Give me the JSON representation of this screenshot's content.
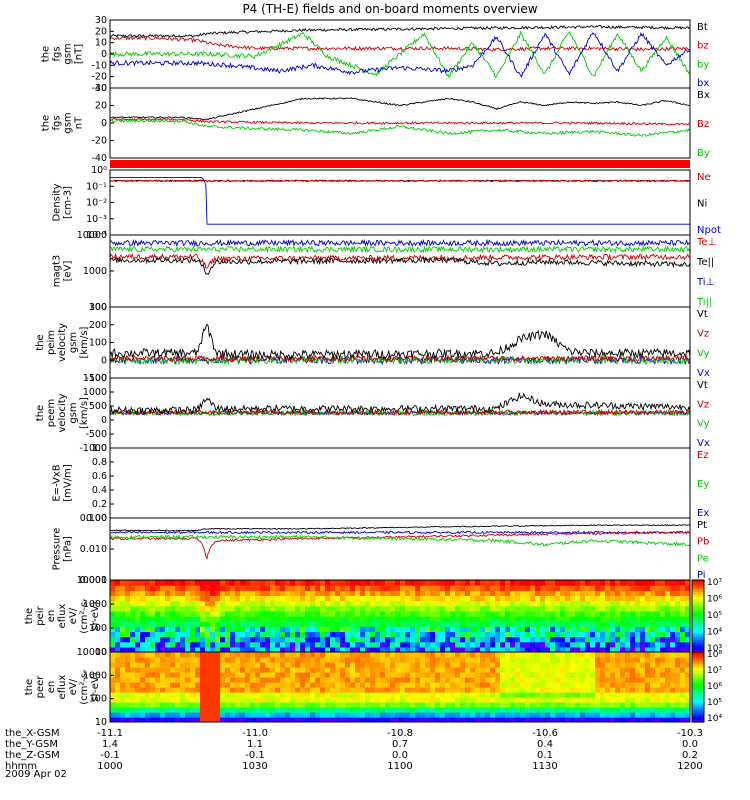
{
  "chart_data": {
    "title": "P4 (TH-E) fields and on-board moments overview",
    "date": "2009 Apr 02",
    "x_ticks": [
      "1000",
      "1030",
      "1100",
      "1130",
      "1200"
    ],
    "xlim_minutes": [
      0,
      120
    ],
    "ephemeris": [
      {
        "label": "the_X-GSM",
        "values": [
          "-11.1",
          "-11.0",
          "-10.8",
          "-10.6",
          "-10.3"
        ]
      },
      {
        "label": "the_Y-GSM",
        "values": [
          "1.4",
          "1.1",
          "0.7",
          "0.4",
          "0.0"
        ]
      },
      {
        "label": "the_Z-GSM",
        "values": [
          "-0.1",
          "-0.1",
          "0.0",
          "0.1",
          "0.2"
        ]
      },
      {
        "label": "hhmm",
        "values": [
          "1000",
          "1030",
          "1100",
          "1130",
          "1200"
        ]
      }
    ],
    "panels": [
      {
        "type": "line",
        "ylabel": [
          "the",
          "fgs",
          "gsm",
          "[nT]"
        ],
        "ylim": [
          -30,
          30
        ],
        "scale": "linear",
        "ticks": [
          "30",
          "20",
          "10",
          "0",
          "-10",
          "-20",
          "-30"
        ],
        "legend": [
          {
            "name": "Bt",
            "color": "#000000"
          },
          {
            "name": "bz",
            "color": "#cc0000"
          },
          {
            "name": "by",
            "color": "#00cc00"
          },
          {
            "name": "bx",
            "color": "#0000cc"
          }
        ],
        "series": [
          {
            "name": "Bt",
            "color": "#000000",
            "x": [
              0,
              10,
              18,
              20,
              25,
              40,
              60,
              80,
              100,
              120
            ],
            "y": [
              16,
              16,
              16,
              18,
              19,
              21,
              22,
              23,
              24,
              23
            ],
            "noise": 1.2
          },
          {
            "name": "bz",
            "color": "#cc0000",
            "x": [
              0,
              10,
              18,
              22,
              30,
              50,
              70,
              80,
              90,
              100,
              110,
              120
            ],
            "y": [
              14,
              14,
              12,
              8,
              5,
              5,
              5,
              4,
              5,
              5,
              4,
              5
            ],
            "noise": 1.5
          },
          {
            "name": "by",
            "color": "#00cc00",
            "x": [
              0,
              10,
              20,
              30,
              40,
              45,
              55,
              60,
              65,
              70,
              75,
              80,
              85,
              90,
              95,
              100,
              105,
              110,
              115,
              120
            ],
            "y": [
              0,
              0,
              0,
              -2,
              18,
              -2,
              -18,
              0,
              18,
              -20,
              10,
              -20,
              18,
              -18,
              20,
              -20,
              18,
              -15,
              15,
              -18
            ],
            "noise": 2
          },
          {
            "name": "bx",
            "color": "#0000cc",
            "x": [
              0,
              10,
              18,
              25,
              35,
              42,
              50,
              60,
              70,
              75,
              80,
              85,
              90,
              95,
              100,
              105,
              110,
              115,
              120
            ],
            "y": [
              -8,
              -8,
              -8,
              -10,
              -15,
              -10,
              -16,
              -12,
              -15,
              -10,
              15,
              -20,
              18,
              -18,
              20,
              -15,
              18,
              -10,
              5
            ],
            "noise": 2
          }
        ]
      },
      {
        "type": "line",
        "ylabel": [
          "the",
          "fgs",
          "gsm",
          "nT"
        ],
        "ylim": [
          -50,
          50
        ],
        "scale": "linear",
        "ticks": [
          "40",
          "20",
          "0",
          "-20",
          "-40"
        ],
        "legend": [
          {
            "name": "Bx",
            "color": "#000000"
          },
          {
            "name": "Bz",
            "color": "#cc0000"
          },
          {
            "name": "By",
            "color": "#00cc00"
          }
        ],
        "series": [
          {
            "name": "Bx",
            "color": "#000000",
            "x": [
              0,
              15,
              20,
              30,
              40,
              50,
              60,
              70,
              75,
              80,
              85,
              90,
              95,
              100,
              105,
              110,
              115,
              120
            ],
            "y": [
              8,
              8,
              5,
              20,
              35,
              35,
              25,
              35,
              30,
              20,
              30,
              25,
              30,
              28,
              30,
              25,
              32,
              25
            ],
            "noise": 1
          },
          {
            "name": "Bz",
            "color": "#cc0000",
            "x": [
              0,
              15,
              20,
              40,
              60,
              80,
              100,
              120
            ],
            "y": [
              5,
              5,
              2,
              0,
              0,
              0,
              0,
              -2
            ],
            "noise": 1.5
          },
          {
            "name": "By",
            "color": "#00cc00",
            "x": [
              0,
              15,
              20,
              30,
              40,
              50,
              60,
              70,
              80,
              90,
              100,
              110,
              120
            ],
            "y": [
              3,
              3,
              -5,
              -8,
              -10,
              -15,
              -5,
              -15,
              -10,
              -15,
              -12,
              -18,
              -10
            ],
            "noise": 2
          }
        ]
      },
      {
        "type": "line",
        "ylabel": [
          "Density",
          "[cm-3]"
        ],
        "ylim": [
          1e-05,
          10
        ],
        "scale": "log",
        "ticks": [
          "10⁰",
          "10⁻¹",
          "10⁻²",
          "10⁻³",
          "10⁻⁴"
        ],
        "legend": [
          {
            "name": "Ne",
            "color": "#cc0000"
          },
          {
            "name": "Ni",
            "color": "#000000"
          },
          {
            "name": "Npot",
            "color": "#0000cc"
          }
        ],
        "series": [
          {
            "name": "Npot",
            "color": "#0000cc",
            "x": [
              0,
              19,
              20,
              120
            ],
            "y": [
              2,
              2,
              0.0001,
              0.0001
            ],
            "noise": 0
          },
          {
            "name": "Ni",
            "color": "#000000",
            "x": [
              0,
              120
            ],
            "y": [
              1,
              1
            ],
            "noise": 0.1
          },
          {
            "name": "Ne",
            "color": "#cc0000",
            "x": [
              0,
              120
            ],
            "y": [
              1,
              1
            ],
            "noise": 0.15
          }
        ]
      },
      {
        "type": "line",
        "ylabel": [
          "magt3",
          "[eV]"
        ],
        "ylim": [
          100,
          10000
        ],
        "scale": "log",
        "ticks": [
          "10000",
          "1000",
          "100"
        ],
        "legend": [
          {
            "name": "Te⊥",
            "color": "#cc0000"
          },
          {
            "name": "Te||",
            "color": "#000000"
          },
          {
            "name": "Ti⊥",
            "color": "#0000cc"
          },
          {
            "name": "Ti||",
            "color": "#00cc00"
          }
        ],
        "series": [
          {
            "name": "Ti⊥",
            "color": "#0000cc",
            "x": [
              0,
              120
            ],
            "y": [
              6000,
              6000
            ],
            "noise": 0.15
          },
          {
            "name": "Ti||",
            "color": "#00cc00",
            "x": [
              0,
              120
            ],
            "y": [
              4000,
              4000
            ],
            "noise": 0.15
          },
          {
            "name": "Te⊥",
            "color": "#cc0000",
            "x": [
              0,
              18,
              20,
              22,
              120
            ],
            "y": [
              2500,
              2500,
              1200,
              2200,
              2500
            ],
            "noise": 0.15
          },
          {
            "name": "Te||",
            "color": "#000000",
            "x": [
              0,
              18,
              20,
              22,
              70,
              80,
              90,
              120
            ],
            "y": [
              2000,
              2000,
              800,
              1800,
              2000,
              1600,
              1800,
              1500
            ],
            "noise": 0.15
          }
        ]
      },
      {
        "type": "line",
        "ylabel": [
          "the",
          "peim",
          "velocity",
          "gsm",
          "[km/s]"
        ],
        "ylim": [
          -100,
          300
        ],
        "scale": "linear",
        "ticks": [
          "300",
          "200",
          "100",
          "0",
          "-100"
        ],
        "legend": [
          {
            "name": "Vt",
            "color": "#000000"
          },
          {
            "name": "Vz",
            "color": "#cc0000"
          },
          {
            "name": "Vy",
            "color": "#00cc00"
          },
          {
            "name": "Vx",
            "color": "#0000cc"
          }
        ],
        "series": [
          {
            "name": "Vx",
            "color": "#0000cc",
            "x": [
              0,
              120
            ],
            "y": [
              0,
              0
            ],
            "noise": 20
          },
          {
            "name": "Vy",
            "color": "#00cc00",
            "x": [
              0,
              120
            ],
            "y": [
              0,
              0
            ],
            "noise": 20
          },
          {
            "name": "Vz",
            "color": "#cc0000",
            "x": [
              0,
              120
            ],
            "y": [
              10,
              10
            ],
            "noise": 15
          },
          {
            "name": "Vt",
            "color": "#000000",
            "x": [
              0,
              18,
              20,
              22,
              30,
              80,
              85,
              90,
              95,
              100,
              120
            ],
            "y": [
              40,
              40,
              200,
              40,
              30,
              40,
              120,
              150,
              50,
              40,
              40
            ],
            "noise": 25
          }
        ]
      },
      {
        "type": "line",
        "ylabel": [
          "the",
          "peem",
          "velocity",
          "gsm",
          "[km/s]"
        ],
        "ylim": [
          -1200,
          1200
        ],
        "scale": "linear",
        "ticks": [
          "1500",
          "1000",
          "500",
          "0",
          "-500",
          "-1000"
        ],
        "legend": [
          {
            "name": "Vt",
            "color": "#000000"
          },
          {
            "name": "Vz",
            "color": "#cc0000"
          },
          {
            "name": "Vy",
            "color": "#00cc00"
          },
          {
            "name": "Vx",
            "color": "#0000cc"
          }
        ],
        "series": [
          {
            "name": "Vx",
            "color": "#0000cc",
            "x": [
              0,
              120
            ],
            "y": [
              0,
              0
            ],
            "noise": 60
          },
          {
            "name": "Vy",
            "color": "#00cc00",
            "x": [
              0,
              120
            ],
            "y": [
              0,
              0
            ],
            "noise": 80
          },
          {
            "name": "Vz",
            "color": "#cc0000",
            "x": [
              0,
              120
            ],
            "y": [
              20,
              20
            ],
            "noise": 80
          },
          {
            "name": "Vt",
            "color": "#000000",
            "x": [
              0,
              18,
              20,
              22,
              80,
              85,
              90,
              120
            ],
            "y": [
              100,
              100,
              500,
              150,
              150,
              600,
              300,
              200
            ],
            "noise": 120
          }
        ]
      },
      {
        "type": "line",
        "ylabel": [
          "E=-VxB",
          "[mV/m]"
        ],
        "ylim": [
          0,
          1
        ],
        "scale": "linear",
        "ticks": [
          "1.0",
          "0.8",
          "0.6",
          "0.4",
          "0.2",
          "0.00"
        ],
        "legend": [
          {
            "name": "Ez",
            "color": "#cc0000"
          },
          {
            "name": "Ey",
            "color": "#00cc00"
          },
          {
            "name": "Ex",
            "color": "#0000cc"
          }
        ],
        "series": []
      },
      {
        "type": "line",
        "ylabel": [
          "Pressure",
          "[nPa]"
        ],
        "ylim": [
          0.001,
          1
        ],
        "scale": "log",
        "ticks": [
          "0.100",
          "0.010",
          "0.001"
        ],
        "legend": [
          {
            "name": "Pt",
            "color": "#000000"
          },
          {
            "name": "Pb",
            "color": "#cc0000"
          },
          {
            "name": "Pe",
            "color": "#00cc00"
          },
          {
            "name": "Pi",
            "color": "#0000cc"
          }
        ],
        "series": [
          {
            "name": "Pt",
            "color": "#000000",
            "x": [
              0,
              18,
              20,
              40,
              60,
              80,
              100,
              120
            ],
            "y": [
              0.25,
              0.25,
              0.3,
              0.3,
              0.35,
              0.4,
              0.45,
              0.45
            ],
            "noise": 0.05
          },
          {
            "name": "Pi",
            "color": "#0000cc",
            "x": [
              0,
              120
            ],
            "y": [
              0.2,
              0.2
            ],
            "noise": 0.1
          },
          {
            "name": "Pb",
            "color": "#cc0000",
            "x": [
              0,
              18,
              20,
              22,
              40,
              60,
              80,
              100,
              120
            ],
            "y": [
              0.1,
              0.1,
              0.008,
              0.08,
              0.1,
              0.12,
              0.15,
              0.18,
              0.2
            ],
            "noise": 0.1
          },
          {
            "name": "Pe",
            "color": "#00cc00",
            "x": [
              0,
              40,
              60,
              80,
              90,
              100,
              120
            ],
            "y": [
              0.12,
              0.12,
              0.1,
              0.08,
              0.05,
              0.08,
              0.05
            ],
            "noise": 0.15
          }
        ]
      },
      {
        "type": "heatmap",
        "ylabel": [
          "the",
          "peir",
          "en",
          "eflux",
          "eV/",
          "(cm²-s-",
          "sr-eV)"
        ],
        "ylim": [
          10,
          30000
        ],
        "scale": "log",
        "ticks": [
          "10000",
          "1000",
          "100",
          "10"
        ],
        "colorbar": {
          "min_exp": 3,
          "max_exp": 7,
          "labels": [
            "10⁷",
            "10⁶",
            "10⁵",
            "10⁴",
            "10³"
          ]
        }
      },
      {
        "type": "heatmap",
        "ylabel": [
          "the",
          "peer",
          "en",
          "eflux",
          "eV/",
          "(cm²-s-",
          "sr-eV)"
        ],
        "ylim": [
          10,
          30000
        ],
        "scale": "log",
        "ticks": [
          "10000",
          "1000",
          "100",
          "10"
        ],
        "colorbar": {
          "min_exp": 4,
          "max_exp": 8,
          "labels": [
            "10⁸",
            "10⁷",
            "10⁶",
            "10⁵",
            "10⁴"
          ]
        }
      }
    ]
  }
}
